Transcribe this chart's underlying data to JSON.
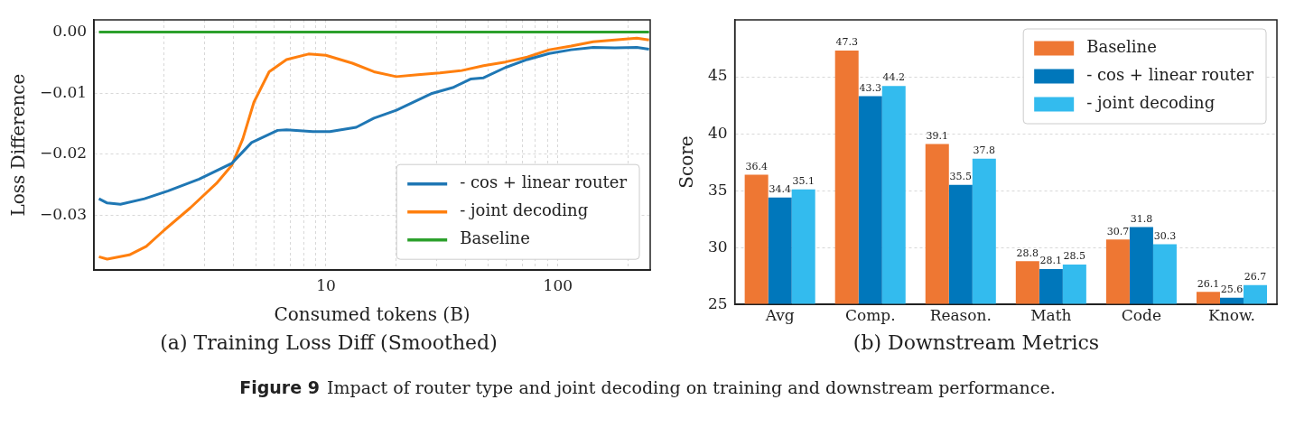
{
  "chart_data": [
    {
      "type": "line",
      "title": "(a) Training Loss Diff (Smoothed)",
      "xlabel": "Consumed tokens (B)",
      "ylabel": "Loss Difference",
      "log": "x",
      "xlim": [
        1,
        250
      ],
      "xticks": [
        {
          "value": 2,
          "label": null
        },
        {
          "value": 3,
          "label": null
        },
        {
          "value": 4,
          "label": null
        },
        {
          "value": 5,
          "label": null
        },
        {
          "value": 6,
          "label": null
        },
        {
          "value": 7,
          "label": null
        },
        {
          "value": 8,
          "label": null
        },
        {
          "value": 9,
          "label": null
        },
        10,
        {
          "value": 20,
          "label": null
        },
        {
          "value": 30,
          "label": null
        },
        {
          "value": 40,
          "label": null
        },
        {
          "value": 50,
          "label": null
        },
        {
          "value": 60,
          "label": null
        },
        {
          "value": 70,
          "label": null
        },
        {
          "value": 80,
          "label": null
        },
        {
          "value": 90,
          "label": null
        },
        100,
        {
          "value": 200,
          "label": null
        }
      ],
      "ylim": [
        -0.039,
        0.002
      ],
      "yticks": [
        {
          "value": 0,
          "label": "0.00"
        },
        {
          "value": -0.01,
          "label": "−0.01"
        },
        {
          "value": -0.02,
          "label": "−0.02"
        },
        {
          "value": -0.03,
          "label": "−0.03"
        }
      ],
      "grid": true,
      "legend": "bottom right",
      "marker": "none",
      "line_style": "solid",
      "series": [
        {
          "name": "- cos + linear router",
          "color": "#1f77b4",
          "x": [
            1.05,
            1.14,
            1.3,
            1.65,
            2.09,
            2.84,
            3.93,
            4.78,
            6.19,
            6.76,
            8.78,
            10.4,
            13.5,
            16.1,
            20.1,
            28.4,
            35.2,
            42,
            47.8,
            59.4,
            73.8,
            91.7,
            114,
            142,
            176,
            219,
            247
          ],
          "values": [
            -0.0273,
            -0.028,
            -0.0282,
            -0.0273,
            -0.026,
            -0.0241,
            -0.0215,
            -0.0181,
            -0.0161,
            -0.016,
            -0.0163,
            -0.0163,
            -0.0156,
            -0.0141,
            -0.0128,
            -0.0101,
            -0.0091,
            -0.0077,
            -0.0075,
            -0.0058,
            -0.0045,
            -0.0035,
            -0.0029,
            -0.0025,
            -0.0026,
            -0.0025,
            -0.0028
          ]
        },
        {
          "name": "- joint decoding",
          "color": "#ff7f0e",
          "x": [
            1.05,
            1.14,
            1.42,
            1.68,
            2,
            2.6,
            3.37,
            3.93,
            4.38,
            4.89,
            5.69,
            6.76,
            8.41,
            10,
            13,
            16.1,
            20.1,
            24.9,
            31,
            38.5,
            47.8,
            59.4,
            73.8,
            91.7,
            114,
            142,
            176,
            219,
            247
          ],
          "values": [
            -0.0368,
            -0.0372,
            -0.0365,
            -0.0351,
            -0.0325,
            -0.0288,
            -0.0248,
            -0.0218,
            -0.0175,
            -0.0115,
            -0.0065,
            -0.0045,
            -0.0036,
            -0.0038,
            -0.0051,
            -0.0065,
            -0.0073,
            -0.007,
            -0.0067,
            -0.0063,
            -0.0055,
            -0.0049,
            -0.0041,
            -0.0029,
            -0.0023,
            -0.0016,
            -0.0013,
            -0.001,
            -0.0013
          ]
        },
        {
          "name": "Baseline",
          "color": "#2ca02c",
          "x": [
            1.05,
            247
          ],
          "values": [
            0,
            0
          ]
        }
      ],
      "annotations": [
        "Figure 9",
        "Impact of router type and joint decoding on training and downstream performance."
      ]
    },
    {
      "type": "bar",
      "title": "(b) Downstream Metrics",
      "ylabel": "Score",
      "categories": [
        "Avg",
        "Comp.",
        "Reason.",
        "Math",
        "Code",
        "Know."
      ],
      "ylim": [
        25,
        50
      ],
      "yticks": [
        25,
        30,
        35,
        40,
        45
      ],
      "grid": "y",
      "legend": "top right",
      "data_labels": true,
      "series": [
        {
          "name": "Baseline",
          "color": "#ee7733",
          "values": [
            36.4,
            47.3,
            39.1,
            28.8,
            30.7,
            26.1
          ]
        },
        {
          "name": "- cos + linear router",
          "color": "#0077bb",
          "values": [
            34.4,
            43.3,
            35.5,
            28.1,
            31.8,
            25.6
          ]
        },
        {
          "name": "- joint decoding",
          "color": "#33bbee",
          "values": [
            35.1,
            44.2,
            37.8,
            28.5,
            30.3,
            26.7
          ]
        }
      ]
    }
  ]
}
